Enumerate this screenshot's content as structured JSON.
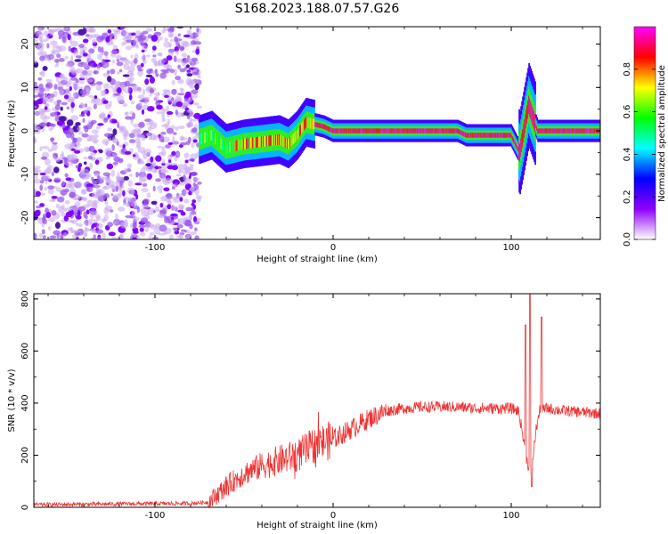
{
  "figure": {
    "title": "S168.2023.188.07.57.G26"
  },
  "chart_data": [
    {
      "type": "heatmap",
      "xlabel": "Height of straight line (km)",
      "ylabel": "Frequency (Hz)",
      "xlim": [
        -168,
        150
      ],
      "ylim": [
        -25,
        24
      ],
      "xticks": [
        -100,
        0,
        100
      ],
      "yticks": [
        -20,
        -10,
        0,
        10,
        20
      ],
      "colorbar": {
        "label": "Normalized spectral amplitude",
        "ticks": [
          0.0,
          0.2,
          0.4,
          0.6,
          0.8
        ],
        "range": [
          0,
          1
        ],
        "colormap": [
          "#ffffff",
          "#8f00ff",
          "#0000ff",
          "#00ffff",
          "#00ff00",
          "#ffff00",
          "#ff0000",
          "#ff00ff"
        ]
      },
      "ridge": {
        "x": [
          -75,
          -68,
          -60,
          -50,
          -40,
          -30,
          -25,
          -20,
          -15,
          -10,
          -5,
          0,
          20,
          40,
          70,
          75,
          85,
          95,
          100,
          105,
          110,
          115,
          130,
          150
        ],
        "y": [
          -2,
          -1,
          -4,
          -3,
          -2.5,
          -2,
          -3,
          -1,
          2,
          1.5,
          1,
          0,
          0,
          0,
          0,
          -1,
          -1,
          -1,
          -1,
          -5,
          6,
          0,
          0,
          0
        ]
      },
      "noise_region_x": [
        -168,
        -75
      ]
    },
    {
      "type": "line",
      "xlabel": "Height of straight line (km)",
      "ylabel": "SNR (10 * v/v)",
      "xlim": [
        -168,
        150
      ],
      "ylim": [
        0,
        820
      ],
      "xticks": [
        -100,
        0,
        100
      ],
      "yticks": [
        0,
        200,
        400,
        600,
        800
      ],
      "color": "#ee3333",
      "profile": {
        "x": [
          -168,
          -80,
          -70,
          -60,
          -50,
          -40,
          -30,
          -20,
          -10,
          0,
          10,
          20,
          30,
          40,
          50,
          60,
          70,
          80,
          90,
          100,
          104,
          106,
          108,
          110,
          112,
          114,
          116,
          120,
          130,
          140,
          150
        ],
        "y": [
          10,
          15,
          20,
          80,
          130,
          160,
          180,
          200,
          240,
          260,
          300,
          340,
          370,
          380,
          385,
          385,
          385,
          380,
          380,
          380,
          370,
          300,
          200,
          150,
          180,
          300,
          370,
          380,
          370,
          365,
          360
        ]
      },
      "spikes": [
        {
          "x": 108,
          "y": 700
        },
        {
          "x": 110.5,
          "y": 820
        },
        {
          "x": 111.5,
          "y": 80
        },
        {
          "x": 117,
          "y": 730
        }
      ]
    }
  ]
}
